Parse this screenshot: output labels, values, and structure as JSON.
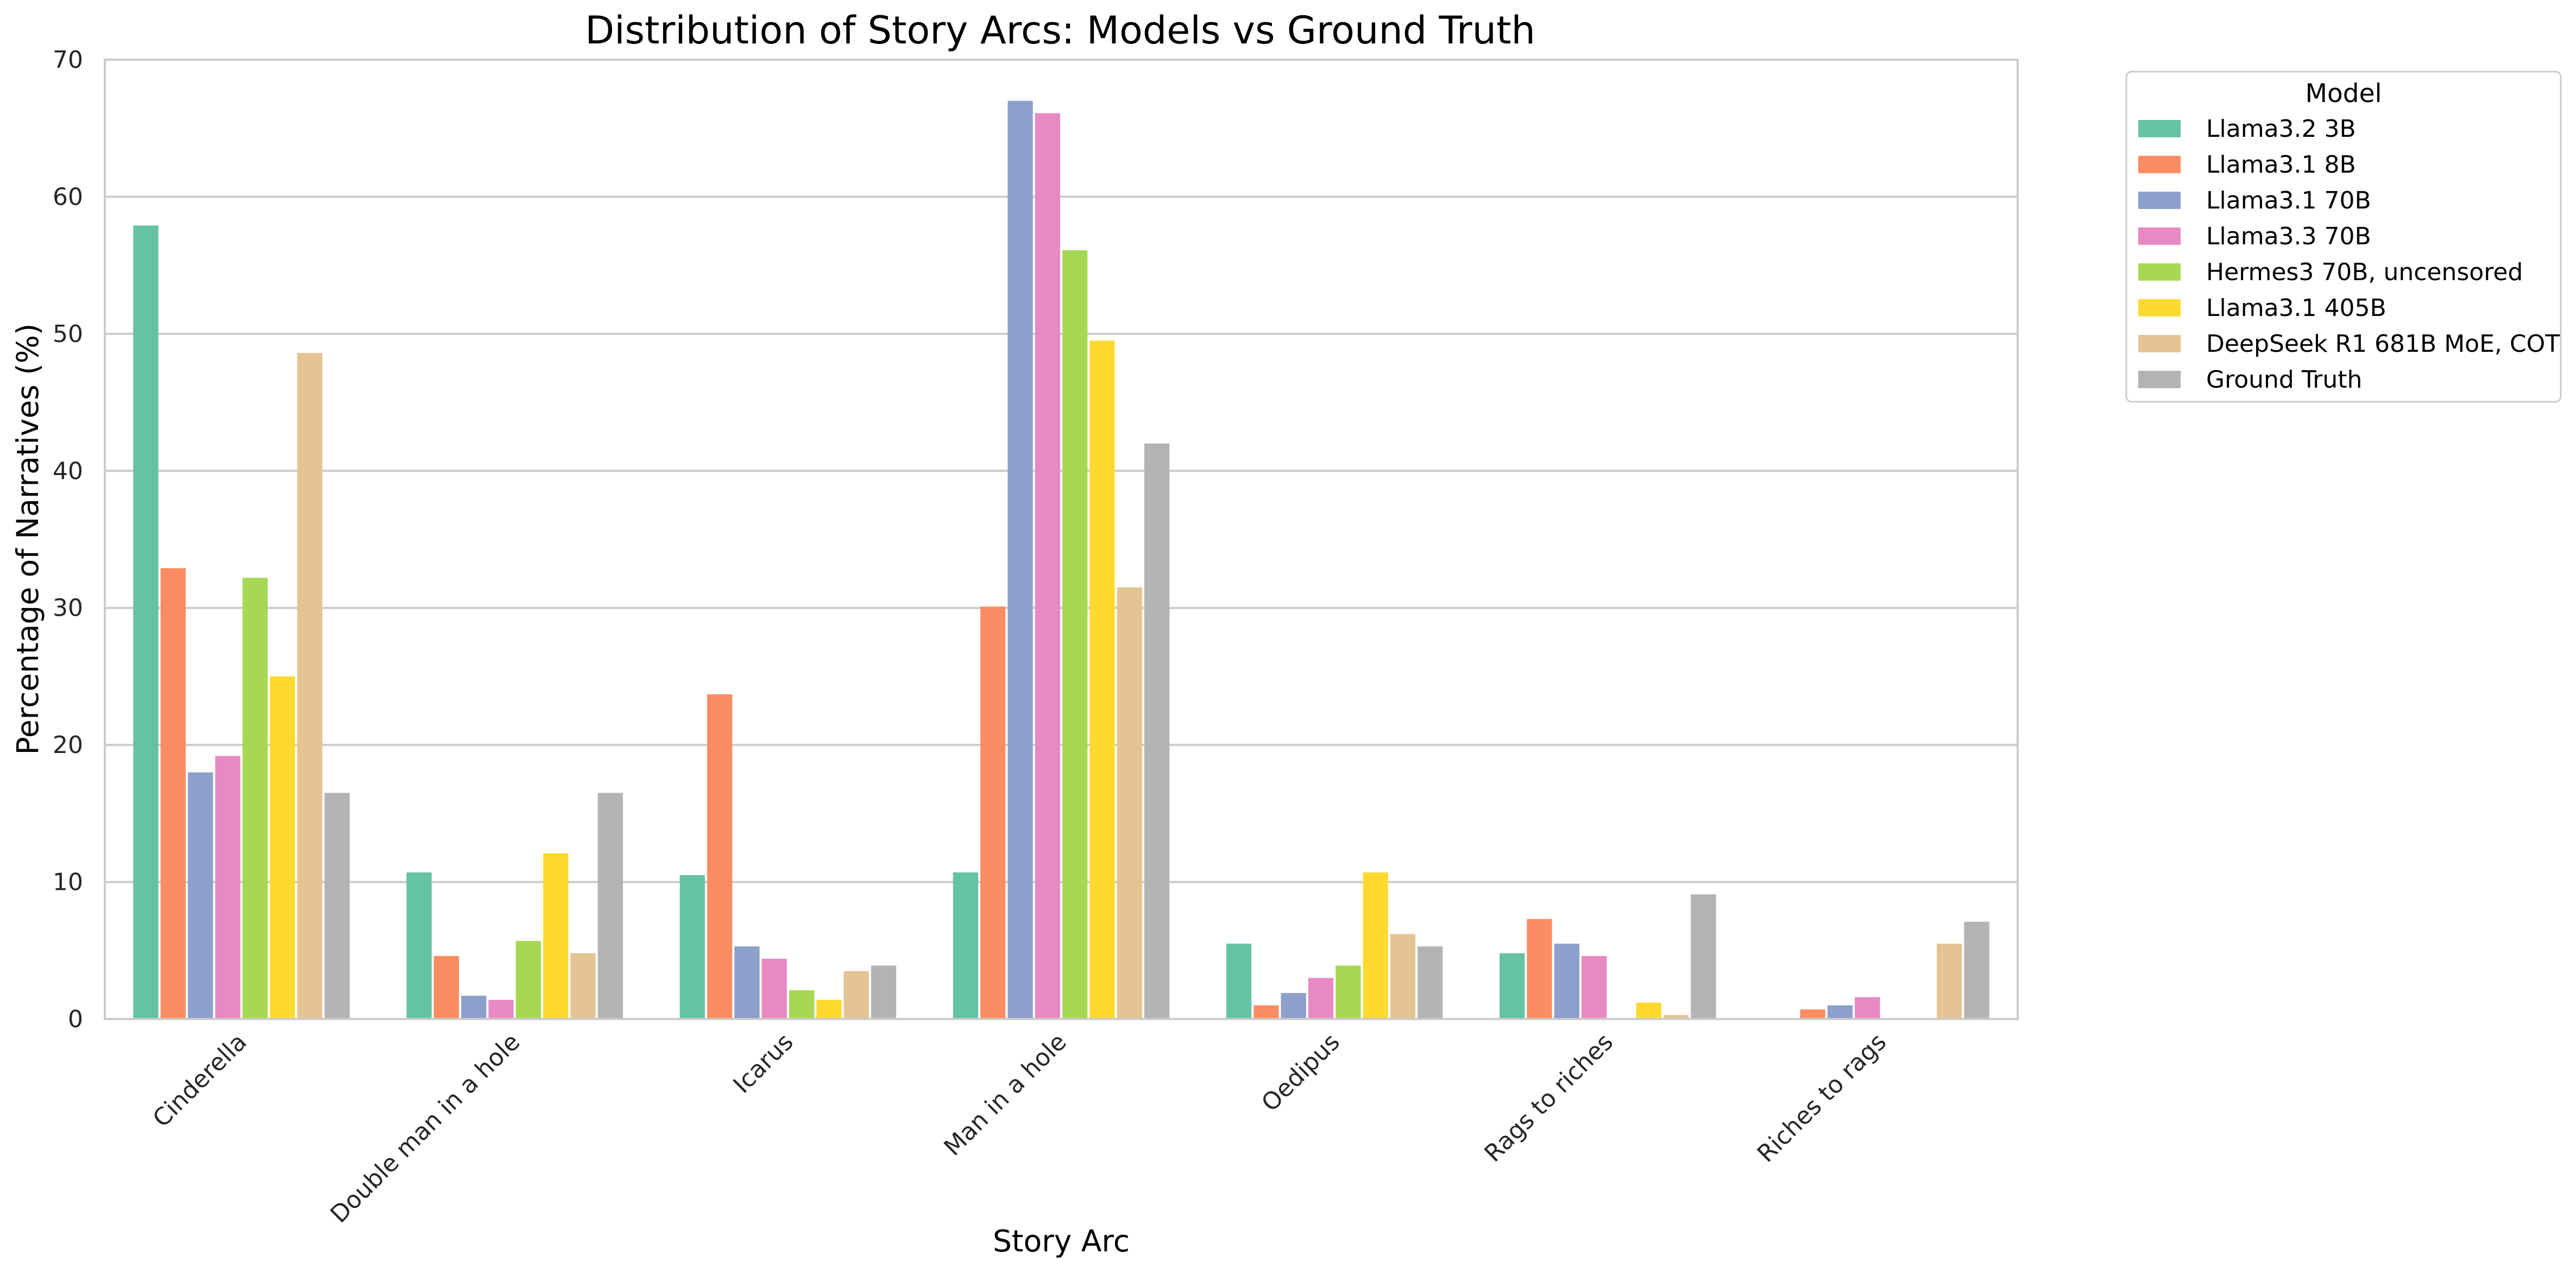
{
  "chart_data": {
    "type": "bar",
    "title": "Distribution of Story Arcs: Models vs Ground Truth",
    "xlabel": "Story Arc",
    "ylabel": "Percentage of Narratives (%)",
    "ylim": [
      0,
      70
    ],
    "yticks": [
      "0",
      "10",
      "20",
      "30",
      "40",
      "50",
      "60",
      "70"
    ],
    "grid": "horizontal",
    "legend_title": "Model",
    "legend_position": "outside-right",
    "categories": [
      "Cinderella",
      "Double man in a hole",
      "Icarus",
      "Man in a hole",
      "Oedipus",
      "Rags to riches",
      "Riches to rags"
    ],
    "series": [
      {
        "name": "Llama3.2 3B",
        "color": "#66c2a5",
        "values": [
          57.9,
          10.7,
          10.5,
          10.7,
          5.5,
          4.8,
          0
        ]
      },
      {
        "name": "Llama3.1 8B",
        "color": "#fc8d62",
        "values": [
          32.9,
          4.6,
          23.7,
          30.1,
          1.0,
          7.3,
          0.7
        ]
      },
      {
        "name": "Llama3.1 70B",
        "color": "#8da0cb",
        "values": [
          18.0,
          1.7,
          5.3,
          67.0,
          1.9,
          5.5,
          1.0
        ]
      },
      {
        "name": "Llama3.3 70B",
        "color": "#e78ac3",
        "values": [
          19.2,
          1.4,
          4.4,
          66.1,
          3.0,
          4.6,
          1.6
        ]
      },
      {
        "name": "Hermes3 70B, uncensored",
        "color": "#a6d854",
        "values": [
          32.2,
          5.7,
          2.1,
          56.1,
          3.9,
          0,
          0
        ]
      },
      {
        "name": "Llama3.1 405B",
        "color": "#ffd92f",
        "values": [
          25.0,
          12.1,
          1.4,
          49.5,
          10.7,
          1.2,
          0
        ]
      },
      {
        "name": "DeepSeek R1 681B MoE, COT",
        "color": "#e5c494",
        "values": [
          48.6,
          4.8,
          3.5,
          31.5,
          6.2,
          0.3,
          5.5
        ]
      },
      {
        "name": "Ground Truth",
        "color": "#b3b3b3",
        "values": [
          16.5,
          16.5,
          3.9,
          42.0,
          5.3,
          9.1,
          7.1
        ]
      }
    ]
  }
}
